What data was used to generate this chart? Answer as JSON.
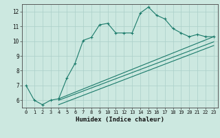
{
  "xlabel": "Humidex (Indice chaleur)",
  "background_color": "#cce8e0",
  "line_color": "#1a7a6a",
  "grid_color": "#aacfc8",
  "xlim": [
    -0.5,
    23.5
  ],
  "ylim": [
    5.5,
    12.5
  ],
  "yticks": [
    6,
    7,
    8,
    9,
    10,
    11,
    12
  ],
  "xticks": [
    0,
    1,
    2,
    3,
    4,
    5,
    6,
    7,
    8,
    9,
    10,
    11,
    12,
    13,
    14,
    15,
    16,
    17,
    18,
    19,
    20,
    21,
    22,
    23
  ],
  "series1_x": [
    0,
    1,
    2,
    3,
    4,
    5,
    6,
    7,
    8,
    9,
    10,
    11,
    12,
    13,
    14,
    15,
    16,
    17,
    18,
    19,
    20,
    21,
    22,
    23
  ],
  "series1_y": [
    7.0,
    6.0,
    5.7,
    6.0,
    6.1,
    7.5,
    8.5,
    10.05,
    10.25,
    11.1,
    11.2,
    10.55,
    10.55,
    10.55,
    11.9,
    12.3,
    11.75,
    11.5,
    10.85,
    10.55,
    10.3,
    10.45,
    10.3,
    10.3
  ],
  "line1_x": [
    4,
    23
  ],
  "line1_y": [
    6.1,
    10.3
  ],
  "line2_x": [
    4,
    23
  ],
  "line2_y": [
    6.0,
    9.95
  ],
  "line3_x": [
    4,
    23
  ],
  "line3_y": [
    5.7,
    9.7
  ]
}
